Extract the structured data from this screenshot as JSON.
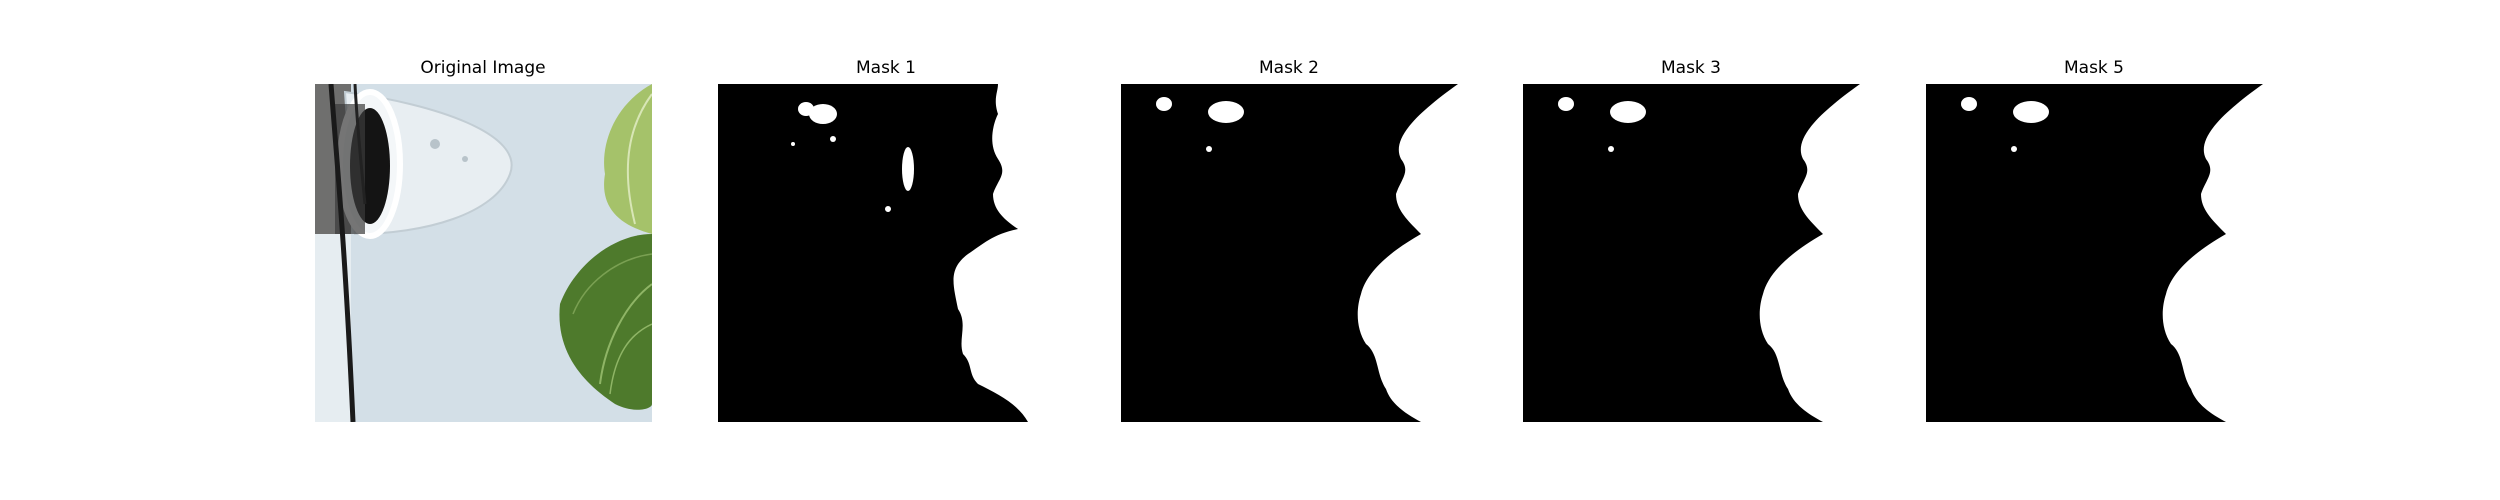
{
  "panels": [
    {
      "title": "Original Image",
      "kind": "photo"
    },
    {
      "title": "Mask 1",
      "kind": "mask"
    },
    {
      "title": "Mask 2",
      "kind": "mask"
    },
    {
      "title": "Mask 3",
      "kind": "mask"
    },
    {
      "title": "Mask 5",
      "kind": "mask"
    }
  ],
  "colors": {
    "mask_background": "#000000",
    "mask_foreground": "#ffffff",
    "photo_wall": "#d8e4ec",
    "photo_leaf_light": "#a9c46e",
    "photo_leaf_dark": "#4f7a2c"
  }
}
